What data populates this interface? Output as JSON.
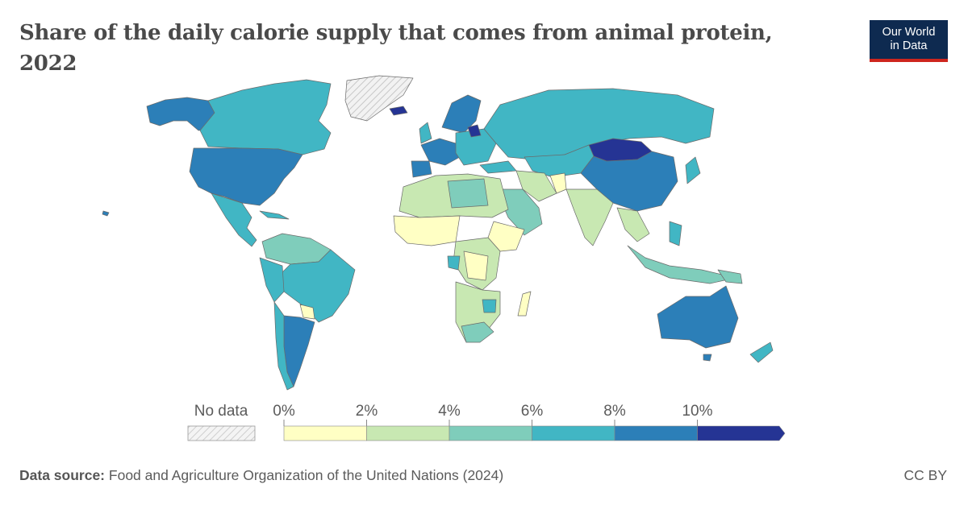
{
  "title": "Share of the daily calorie supply that comes from animal protein, 2022",
  "logo": {
    "line1": "Our World",
    "line2": "in Data"
  },
  "legend": {
    "no_data_label": "No data",
    "ticks": [
      "0%",
      "2%",
      "4%",
      "6%",
      "8%",
      "10%"
    ],
    "colors": [
      "#ffffc4",
      "#c8e8b2",
      "#7fcdbb",
      "#41b6c4",
      "#2c7fb8",
      "#253494"
    ]
  },
  "footer": {
    "source_label": "Data source:",
    "source_text": "Food and Agriculture Organization of the United Nations (2024)",
    "license": "CC BY"
  },
  "colors": {
    "no_data": "#e0e0e0",
    "ocean": "#ffffff",
    "border": "#777777"
  }
}
